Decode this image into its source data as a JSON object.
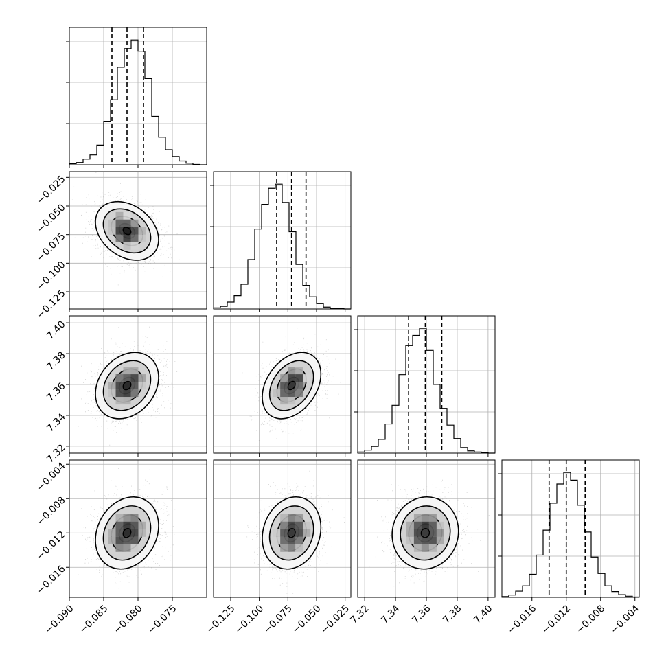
{
  "chart_data": {
    "type": "corner",
    "parameters": [
      {
        "ticks": [
          -0.09,
          -0.085,
          -0.08,
          -0.075
        ],
        "tick_labels": [
          "−0.090",
          "−0.085",
          "−0.080",
          "−0.075"
        ],
        "range": [
          -0.09,
          -0.07
        ],
        "median": -0.0816,
        "q16": -0.0838,
        "q84": -0.0792,
        "hist": [
          0.3,
          0.6,
          1.5,
          2.6,
          5.2,
          11.5,
          17.2,
          25.8,
          30.7,
          33.0,
          30.0,
          22.8,
          12.8,
          7.3,
          4.0,
          2.2,
          1.0,
          0.4,
          0.1,
          0.0
        ]
      },
      {
        "ticks": [
          -0.125,
          -0.1,
          -0.075,
          -0.05,
          -0.025
        ],
        "tick_labels": [
          "−0.125",
          "−0.100",
          "−0.075",
          "−0.050",
          "−0.025"
        ],
        "range": [
          -0.14,
          -0.02
        ],
        "median": -0.0718,
        "q16": -0.0848,
        "q84": -0.0592,
        "hist": [
          0.3,
          0.7,
          1.8,
          3.5,
          6.5,
          13.0,
          21.0,
          27.5,
          31.7,
          32.8,
          28.0,
          20.3,
          11.7,
          6.2,
          3.2,
          1.4,
          0.5,
          0.2,
          0.1,
          0.0
        ]
      },
      {
        "ticks": [
          7.32,
          7.34,
          7.36,
          7.38,
          7.4
        ],
        "tick_labels": [
          "7.32",
          "7.34",
          "7.36",
          "7.38",
          "7.40"
        ],
        "range": [
          7.3155,
          7.4045
        ],
        "median": 7.3593,
        "q16": 7.3485,
        "q84": 7.37,
        "hist": [
          0.3,
          0.8,
          1.8,
          3.7,
          7.8,
          12.8,
          21.0,
          28.8,
          31.5,
          33.4,
          27.5,
          18.4,
          12.0,
          7.5,
          3.9,
          1.5,
          0.6,
          0.3,
          0.2,
          0.0
        ]
      },
      {
        "ticks": [
          -0.016,
          -0.012,
          -0.008,
          -0.004
        ],
        "tick_labels": [
          "−0.016",
          "−0.012",
          "−0.008",
          "−0.004"
        ],
        "range": [
          -0.0195,
          -0.0035
        ],
        "median": -0.012,
        "q16": -0.014,
        "q84": -0.0098,
        "hist": [
          0.2,
          0.6,
          1.6,
          3.0,
          6.0,
          11.0,
          17.5,
          24.5,
          29.5,
          32.5,
          30.5,
          24.0,
          17.0,
          10.5,
          6.2,
          3.0,
          1.5,
          0.7,
          0.3,
          0.1
        ]
      }
    ],
    "correlations": {
      "1-0": -0.3,
      "2-0": 0.25,
      "2-1": 0.35,
      "3-0": 0.2,
      "3-1": 0.15,
      "3-2": 0.05
    },
    "quantile_lines": "dashed",
    "grid": true
  }
}
